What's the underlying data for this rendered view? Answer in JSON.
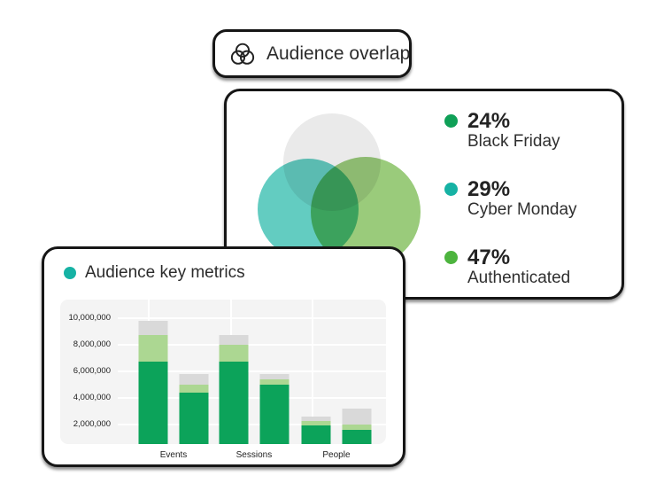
{
  "chip": {
    "label": "Audience overlap",
    "icon": "venn-overlap-icon"
  },
  "overlap_card": {
    "venn_circle_colors": [
      "#EAEAEA",
      "#63CCC1",
      "#9ACB7B"
    ]
  },
  "metrics_card": {
    "title_dot_color": "#16B2A4"
  },
  "chart_data": [
    {
      "type": "venn",
      "title": "Audience overlap",
      "sets": [
        {
          "pct_label": "24%",
          "value_pct": 24,
          "label": "Black Friday",
          "dot_color": "#0FA057"
        },
        {
          "pct_label": "29%",
          "value_pct": 29,
          "label": "Cyber Monday",
          "dot_color": "#16B2A4"
        },
        {
          "pct_label": "47%",
          "value_pct": 47,
          "label": "Authenticated",
          "dot_color": "#4DB43E"
        }
      ],
      "circle_colors": [
        "#EAEAEA",
        "#63CCC1",
        "#9ACB7B"
      ],
      "legend_position": "right"
    },
    {
      "type": "bar",
      "stacked": true,
      "title": "Audience key metrics",
      "categories": [
        "Events",
        "Sessions",
        "People"
      ],
      "bars_per_category": 2,
      "y_tick_labels": [
        "10,000,000",
        "8,000,000",
        "6,000,000",
        "4,000,000",
        "2,000,000"
      ],
      "y_tick_values": [
        10000000,
        8000000,
        6000000,
        4000000,
        2000000
      ],
      "ylim": [
        500000,
        11400000
      ],
      "grid": true,
      "legend_position": "none",
      "stack_order": [
        "green",
        "light_green",
        "gray"
      ],
      "stack_colors": {
        "green": "#0CA35A",
        "light_green": "#ACD792",
        "gray": "#D9D9D9"
      },
      "groups": [
        {
          "category": "Events",
          "bars": [
            [
              6700000,
              8700000,
              9800000
            ],
            [
              4400000,
              5000000,
              5800000
            ]
          ]
        },
        {
          "category": "Sessions",
          "bars": [
            [
              6700000,
              8000000,
              8700000
            ],
            [
              5000000,
              5400000,
              5800000
            ]
          ]
        },
        {
          "category": "People",
          "bars": [
            [
              1900000,
              2250000,
              2600000
            ],
            [
              1550000,
              2000000,
              3200000
            ]
          ]
        }
      ]
    }
  ]
}
